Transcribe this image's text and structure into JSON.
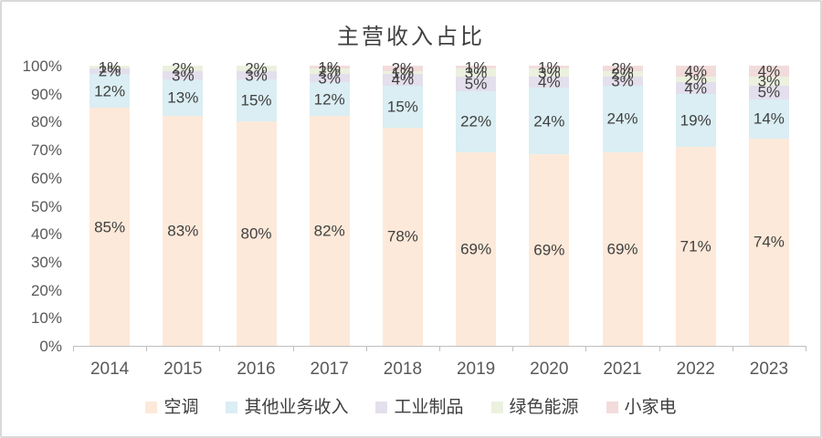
{
  "chart_data": {
    "type": "bar",
    "variant": "stacked-100-percent-column",
    "title": "主营收入占比",
    "categories": [
      "2014",
      "2015",
      "2016",
      "2017",
      "2018",
      "2019",
      "2020",
      "2021",
      "2022",
      "2023"
    ],
    "series": [
      {
        "name": "空调",
        "color": "#FDE9D9",
        "values": [
          85,
          83,
          80,
          82,
          78,
          69,
          69,
          69,
          71,
          74
        ]
      },
      {
        "name": "其他业务收入",
        "color": "#DAEEF3",
        "values": [
          12,
          13,
          15,
          12,
          15,
          22,
          24,
          24,
          19,
          14
        ]
      },
      {
        "name": "工业制品",
        "color": "#E4DFEC",
        "values": [
          2,
          3,
          3,
          3,
          4,
          5,
          4,
          3,
          4,
          5
        ]
      },
      {
        "name": "绿色能源",
        "color": "#EBF1DE",
        "values": [
          1,
          2,
          2,
          2,
          1,
          3,
          3,
          2,
          2,
          3
        ]
      },
      {
        "name": "小家电",
        "color": "#F2DCDB",
        "values": [
          0,
          0,
          0,
          1,
          2,
          1,
          1,
          2,
          4,
          4
        ]
      }
    ],
    "data_label_suffix": "%",
    "y_axis": {
      "min": 0,
      "max": 100,
      "tick_step": 10,
      "tick_labels": [
        "0%",
        "10%",
        "20%",
        "30%",
        "40%",
        "50%",
        "60%",
        "70%",
        "80%",
        "90%",
        "100%"
      ]
    },
    "legend": {
      "position": "bottom",
      "entries": [
        "空调",
        "其他业务收入",
        "工业制品",
        "绿色能源",
        "小家电"
      ]
    },
    "gridlines": false,
    "axis_line_color": "#bfbfbf",
    "label_color": "#404040",
    "axis_text_color": "#595959"
  }
}
